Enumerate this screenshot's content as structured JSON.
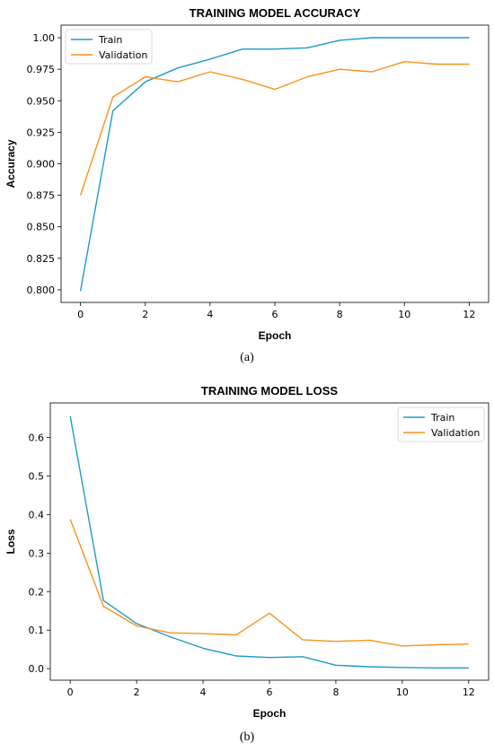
{
  "chart_data": [
    {
      "type": "line",
      "title": "TRAINING MODEL ACCURACY",
      "xlabel": "Epoch",
      "ylabel": "Accuracy",
      "caption": "(a)",
      "x": [
        0,
        1,
        2,
        3,
        4,
        5,
        6,
        7,
        8,
        9,
        10,
        11,
        12
      ],
      "xticks": [
        "0",
        "2",
        "4",
        "6",
        "8",
        "10",
        "12"
      ],
      "xtick_values": [
        0,
        2,
        4,
        6,
        8,
        10,
        12
      ],
      "xlim": [
        -0.6,
        12.6
      ],
      "ylim": [
        0.79,
        1.01
      ],
      "yticks": [
        "0.800",
        "0.825",
        "0.850",
        "0.875",
        "0.900",
        "0.925",
        "0.950",
        "0.975",
        "1.00"
      ],
      "ytick_values": [
        0.8,
        0.825,
        0.85,
        0.875,
        0.9,
        0.925,
        0.95,
        0.975,
        1.0
      ],
      "grid": false,
      "legend_position": "top-left",
      "series": [
        {
          "name": "Train",
          "color": "#1f9bc7",
          "values": [
            0.799,
            0.942,
            0.965,
            0.976,
            0.983,
            0.991,
            0.991,
            0.992,
            0.998,
            1.0,
            1.0,
            1.0,
            1.0
          ]
        },
        {
          "name": "Validation",
          "color": "#f7931e",
          "values": [
            0.875,
            0.953,
            0.969,
            0.965,
            0.973,
            0.967,
            0.959,
            0.969,
            0.975,
            0.973,
            0.981,
            0.979,
            0.979
          ]
        }
      ]
    },
    {
      "type": "line",
      "title": "TRAINING MODEL LOSS",
      "xlabel": "Epoch",
      "ylabel": "Loss",
      "caption": "(b)",
      "x": [
        0,
        1,
        2,
        3,
        4,
        5,
        6,
        7,
        8,
        9,
        10,
        11,
        12
      ],
      "xticks": [
        "0",
        "2",
        "4",
        "6",
        "8",
        "10",
        "12"
      ],
      "xtick_values": [
        0,
        2,
        4,
        6,
        8,
        10,
        12
      ],
      "xlim": [
        -0.6,
        12.6
      ],
      "ylim": [
        -0.03,
        0.69
      ],
      "yticks": [
        "0.0",
        "0.1",
        "0.2",
        "0.3",
        "0.4",
        "0.5",
        "0.6"
      ],
      "ytick_values": [
        0,
        0.1,
        0.2,
        0.3,
        0.4,
        0.5,
        0.6
      ],
      "grid": false,
      "legend_position": "top-right",
      "series": [
        {
          "name": "Train",
          "color": "#1f9bc7",
          "values": [
            0.655,
            0.177,
            0.117,
            0.083,
            0.053,
            0.033,
            0.029,
            0.031,
            0.009,
            0.005,
            0.003,
            0.002,
            0.002
          ]
        },
        {
          "name": "Validation",
          "color": "#f7931e",
          "values": [
            0.388,
            0.162,
            0.111,
            0.093,
            0.091,
            0.088,
            0.144,
            0.075,
            0.071,
            0.074,
            0.059,
            0.062,
            0.064
          ]
        }
      ]
    }
  ]
}
